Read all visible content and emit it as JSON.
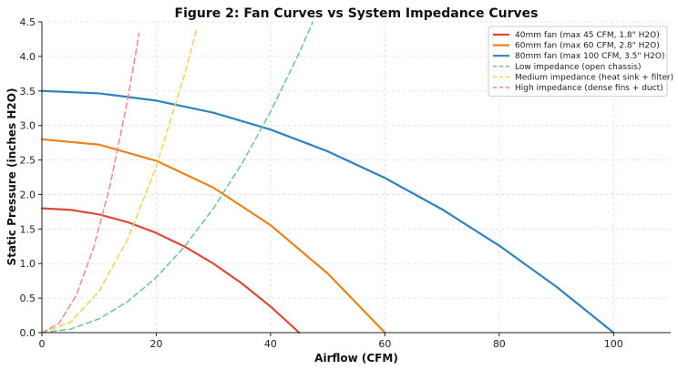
{
  "chart_data": {
    "type": "line",
    "title": "Figure 2: Fan Curves vs System Impedance Curves",
    "xlabel": "Airflow (CFM)",
    "ylabel": "Static Pressure (inches H2O)",
    "xlim": [
      0,
      110
    ],
    "ylim": [
      0,
      4.5
    ],
    "xticks": [
      0,
      20,
      40,
      60,
      80,
      100
    ],
    "yticks": [
      0.0,
      0.5,
      1.0,
      1.5,
      2.0,
      2.5,
      3.0,
      3.5,
      4.0,
      4.5
    ],
    "grid": true,
    "legend_position": "top-right",
    "series": [
      {
        "name": "40mm fan (max 45 CFM, 1.8\" H2O)",
        "color": "#d94a3a",
        "style": "solid",
        "x": [
          0,
          5,
          10,
          15,
          20,
          25,
          30,
          35,
          40,
          45
        ],
        "y": [
          1.8,
          1.778,
          1.711,
          1.6,
          1.444,
          1.244,
          1.0,
          0.711,
          0.378,
          0.0
        ]
      },
      {
        "name": "60mm fan (max 60 CFM, 2.8\" H2O)",
        "color": "#e8831f",
        "style": "solid",
        "x": [
          0,
          10,
          20,
          30,
          40,
          50,
          60
        ],
        "y": [
          2.8,
          2.722,
          2.489,
          2.1,
          1.556,
          0.856,
          0.0
        ]
      },
      {
        "name": "80mm fan (max 100 CFM, 3.5\" H2O)",
        "color": "#2f83bd",
        "style": "solid",
        "x": [
          0,
          10,
          20,
          30,
          40,
          50,
          60,
          70,
          80,
          90,
          100
        ],
        "y": [
          3.5,
          3.465,
          3.36,
          3.185,
          2.94,
          2.625,
          2.24,
          1.785,
          1.26,
          0.665,
          0.0
        ]
      },
      {
        "name": "Low impedance (open chassis)",
        "color": "#6cc393",
        "style": "dashed",
        "x": [
          0,
          5,
          10,
          15,
          20,
          25,
          30,
          35,
          40,
          45,
          47.4
        ],
        "y": [
          0.0,
          0.05,
          0.2,
          0.45,
          0.8,
          1.25,
          1.8,
          2.45,
          3.2,
          4.05,
          4.5
        ]
      },
      {
        "name": "Medium impedance (heat sink + filter)",
        "color": "#f2d15c",
        "style": "dashed",
        "x": [
          0,
          5,
          10,
          15,
          20,
          25,
          27.0
        ],
        "y": [
          0.0,
          0.15,
          0.6,
          1.35,
          2.4,
          3.75,
          4.37
        ]
      },
      {
        "name": "High impedance (dense fins + duct)",
        "color": "#ec8a87",
        "style": "dashed",
        "x": [
          0,
          3,
          6,
          9,
          12,
          15,
          17.0
        ],
        "y": [
          0.0,
          0.135,
          0.54,
          1.215,
          2.16,
          3.375,
          4.335
        ]
      }
    ]
  },
  "colors": {
    "axis": "#222222",
    "grid": "#dddddd",
    "legend_border": "#cccccc"
  }
}
